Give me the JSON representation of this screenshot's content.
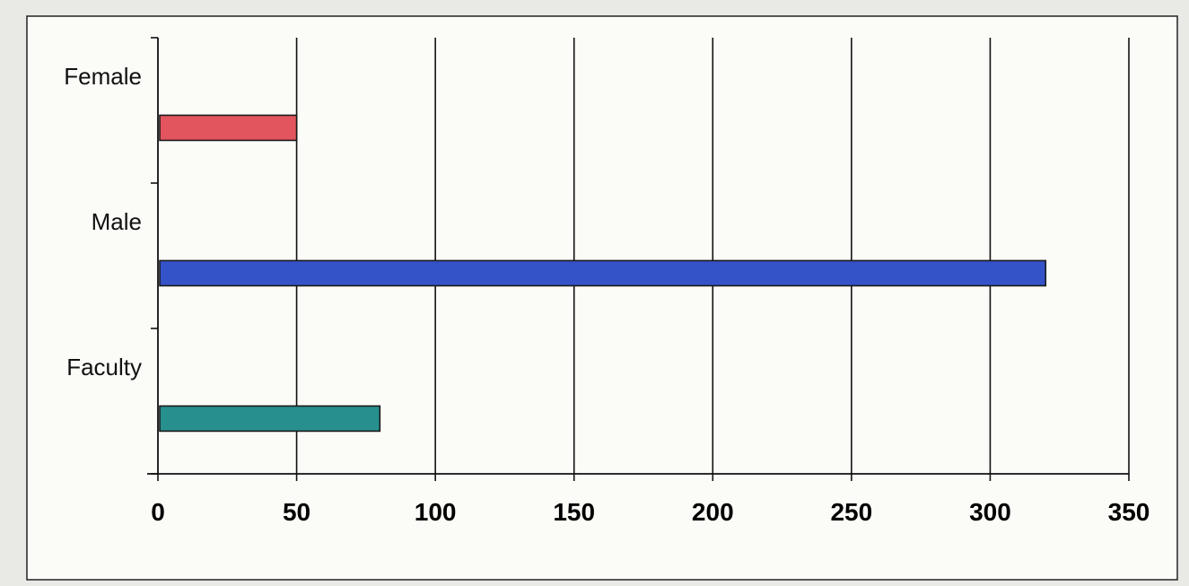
{
  "chart_data": {
    "type": "bar",
    "orientation": "horizontal",
    "categories": [
      "Female",
      "Male",
      "Faculty"
    ],
    "values": [
      50,
      320,
      80
    ],
    "bar_colors": [
      "#e2545e",
      "#3553c8",
      "#27908f"
    ],
    "xlim": [
      0,
      350
    ],
    "x_ticks": [
      0,
      50,
      100,
      150,
      200,
      250,
      300,
      350
    ],
    "x_tick_labels": [
      "0",
      "50",
      "100",
      "150",
      "200",
      "250",
      "300",
      "350"
    ],
    "grid": "vertical",
    "legend": "none",
    "title": "",
    "xlabel": "",
    "ylabel": ""
  }
}
